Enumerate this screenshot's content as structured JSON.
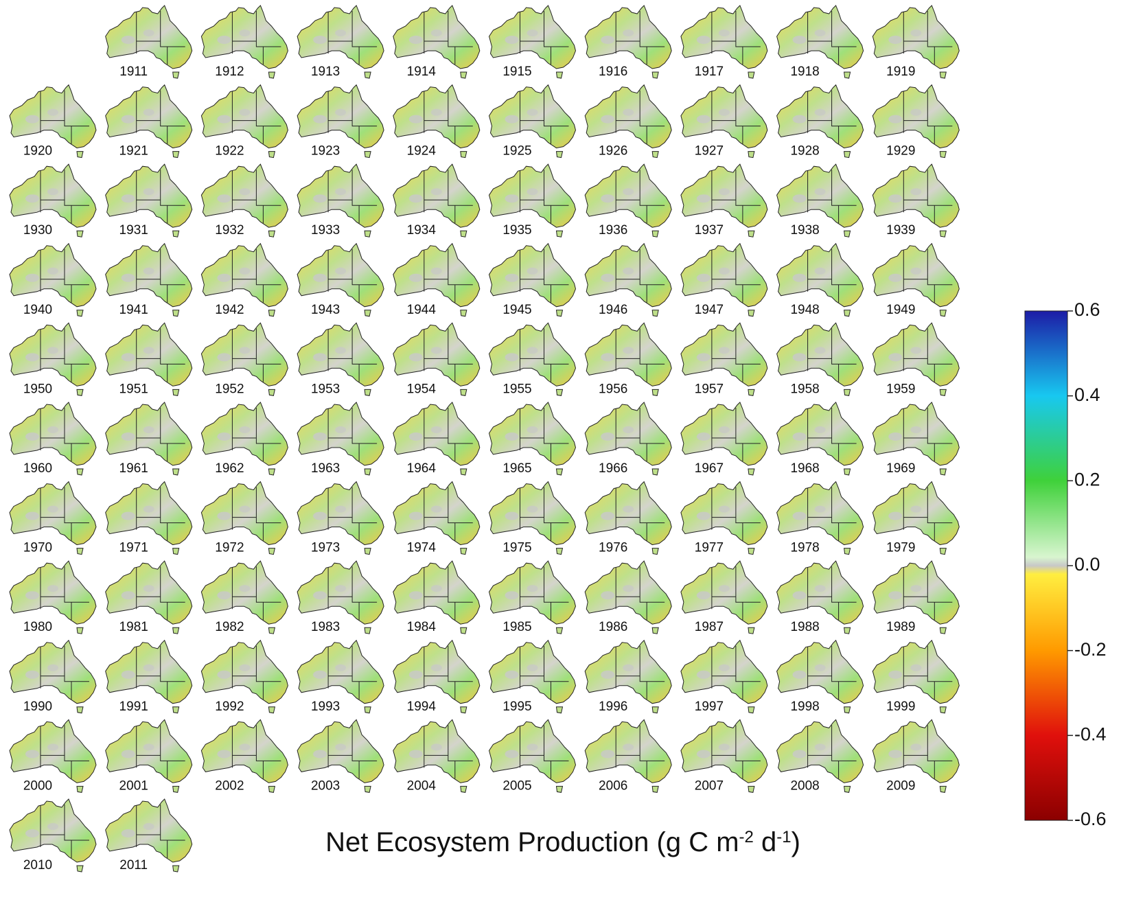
{
  "years": [
    1911,
    1912,
    1913,
    1914,
    1915,
    1916,
    1917,
    1918,
    1919,
    1920,
    1921,
    1922,
    1923,
    1924,
    1925,
    1926,
    1927,
    1928,
    1929,
    1930,
    1931,
    1932,
    1933,
    1934,
    1935,
    1936,
    1937,
    1938,
    1939,
    1940,
    1941,
    1942,
    1943,
    1944,
    1945,
    1946,
    1947,
    1948,
    1949,
    1950,
    1951,
    1952,
    1953,
    1954,
    1955,
    1956,
    1957,
    1958,
    1959,
    1960,
    1961,
    1962,
    1963,
    1964,
    1965,
    1966,
    1967,
    1968,
    1969,
    1970,
    1971,
    1972,
    1973,
    1974,
    1975,
    1976,
    1977,
    1978,
    1979,
    1980,
    1981,
    1982,
    1983,
    1984,
    1985,
    1986,
    1987,
    1988,
    1989,
    1990,
    1991,
    1992,
    1993,
    1994,
    1995,
    1996,
    1997,
    1998,
    1999,
    2000,
    2001,
    2002,
    2003,
    2004,
    2005,
    2006,
    2007,
    2008,
    2009,
    2010,
    2011
  ],
  "colorbar": {
    "lim": [
      -0.6,
      0.6
    ],
    "ticks": [
      0.6,
      0.4,
      0.2,
      {
        "value": 0,
        "label": "0.0"
      },
      -0.2,
      -0.4,
      -0.6
    ],
    "stops": [
      {
        "value": -0.6,
        "color": "#8b0000"
      },
      {
        "value": -0.4,
        "color": "#e0100c"
      },
      {
        "value": -0.2,
        "color": "#ff9a00"
      },
      {
        "value": -0.02,
        "color": "#ffee40"
      },
      {
        "value": 0,
        "color": "#c8c8c8"
      },
      {
        "value": 0.02,
        "color": "#d8f5cf"
      },
      {
        "value": 0.2,
        "color": "#3fd13a"
      },
      {
        "value": 0.4,
        "color": "#18c8f0"
      },
      {
        "value": 0.6,
        "color": "#1c1ca6"
      }
    ]
  },
  "title": {
    "parts": [
      {
        "text": "Net Ecosystem Production (g C m",
        "sup": false
      },
      {
        "text": "-2",
        "sup": true
      },
      {
        "text": " d",
        "sup": false
      },
      {
        "text": "-1",
        "sup": true
      },
      {
        "text": ")",
        "sup": false
      }
    ]
  }
}
